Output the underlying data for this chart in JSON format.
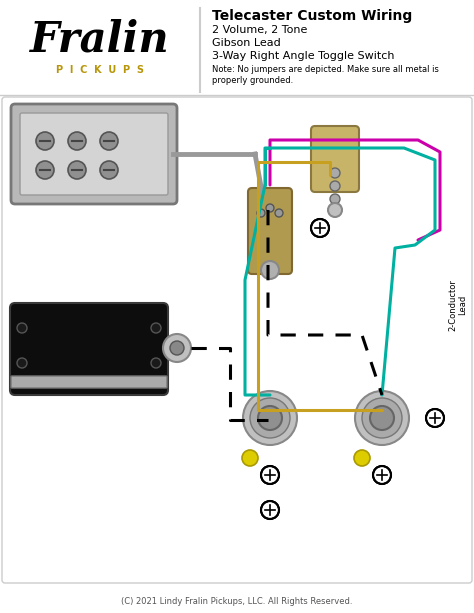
{
  "title": "Telecaster Custom Wiring",
  "subtitle_lines": [
    "2 Volume, 2 Tone",
    "Gibson Lead",
    "3-Way Right Angle Toggle Switch"
  ],
  "note": "Note: No jumpers are depicted. Make sure all metal is\nproperly grounded.",
  "copyright": "(C) 2021 Lindy Fralin Pickups, LLC. All Rights Reserved.",
  "bg_color": "#ffffff",
  "logo_text": "Fralin",
  "logo_sub": "PICKUPS",
  "wire_colors": {
    "teal": "#00b0a0",
    "gold": "#c8a020",
    "magenta": "#cc00aa",
    "gray": "#888888",
    "black": "#111111",
    "white": "#ffffff"
  },
  "conductor_label": "2-Conductor\nLead"
}
